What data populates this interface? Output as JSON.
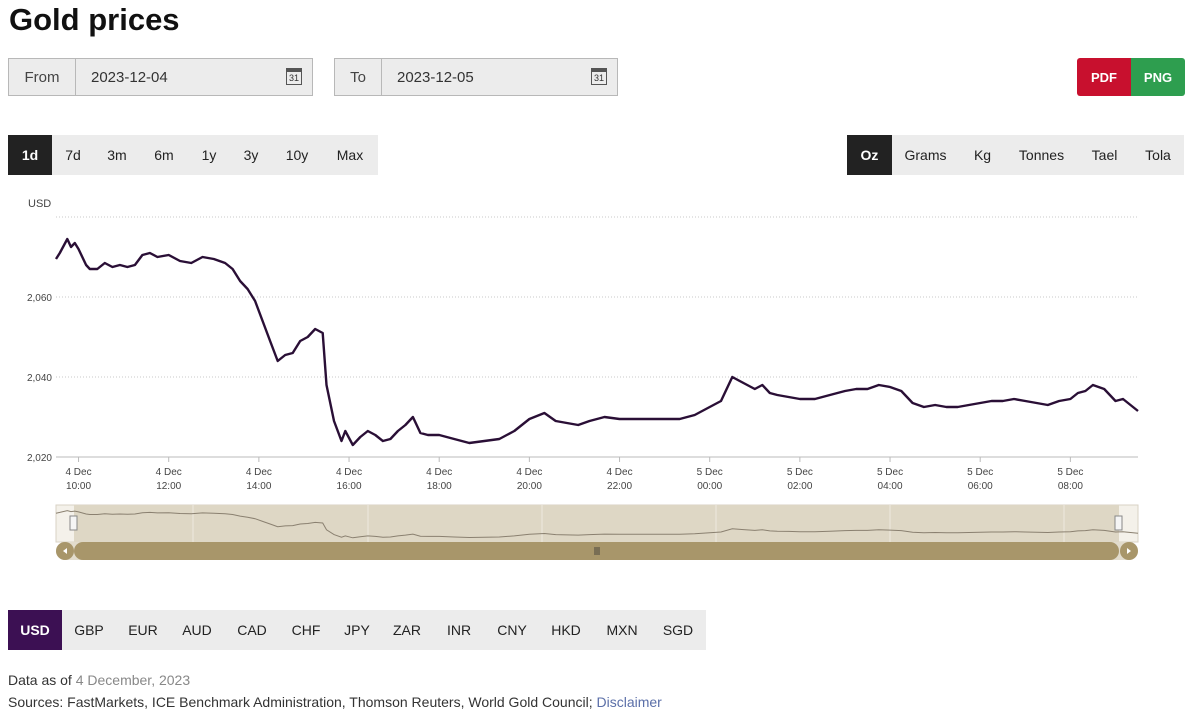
{
  "page": {
    "title": "Gold prices"
  },
  "date_range": {
    "from_label": "From",
    "from_value": "2023-12-04",
    "to_label": "To",
    "to_value": "2023-12-05",
    "calendar_glyph": "31"
  },
  "export": {
    "pdf_label": "PDF",
    "png_label": "PNG",
    "pdf_color": "#c8102e",
    "png_color": "#2e9e4f"
  },
  "ranges": [
    {
      "label": "1d",
      "active": true
    },
    {
      "label": "7d",
      "active": false
    },
    {
      "label": "3m",
      "active": false
    },
    {
      "label": "6m",
      "active": false
    },
    {
      "label": "1y",
      "active": false
    },
    {
      "label": "3y",
      "active": false
    },
    {
      "label": "10y",
      "active": false
    },
    {
      "label": "Max",
      "active": false
    }
  ],
  "units": [
    {
      "label": "Oz",
      "active": true
    },
    {
      "label": "Grams",
      "active": false
    },
    {
      "label": "Kg",
      "active": false
    },
    {
      "label": "Tonnes",
      "active": false
    },
    {
      "label": "Tael",
      "active": false
    },
    {
      "label": "Tola",
      "active": false
    }
  ],
  "currencies": [
    {
      "label": "USD",
      "active": true
    },
    {
      "label": "GBP",
      "active": false
    },
    {
      "label": "EUR",
      "active": false
    },
    {
      "label": "AUD",
      "active": false
    },
    {
      "label": "CAD",
      "active": false
    },
    {
      "label": "CHF",
      "active": false
    },
    {
      "label": "JPY",
      "active": false
    },
    {
      "label": "ZAR",
      "active": false
    },
    {
      "label": "INR",
      "active": false
    },
    {
      "label": "CNY",
      "active": false
    },
    {
      "label": "HKD",
      "active": false
    },
    {
      "label": "MXN",
      "active": false
    },
    {
      "label": "SGD",
      "active": false
    }
  ],
  "footer": {
    "data_as_of_label": "Data as of",
    "data_as_of_date": "4 December, 2023",
    "sources_text": "Sources: FastMarkets, ICE Benchmark Administration, Thomson Reuters, World Gold Council;",
    "disclaimer_label": "Disclaimer"
  },
  "colors": {
    "line": "#2a0f36",
    "active_currency": "#3c1053",
    "navigator_fill": "#ded7c5",
    "scrollbar": "#a8966a"
  },
  "chart_data": {
    "type": "line",
    "ylabel": "USD",
    "ylim": [
      2020,
      2080
    ],
    "yticks": [
      2020,
      2040,
      2060
    ],
    "ytick_labels": [
      "2,020",
      "2,040",
      "2,060"
    ],
    "xlim": [
      "2023-12-04T09:30",
      "2023-12-05T09:30"
    ],
    "xticks": [
      {
        "t": "2023-12-04T10:00",
        "line1": "4 Dec",
        "line2": "10:00"
      },
      {
        "t": "2023-12-04T12:00",
        "line1": "4 Dec",
        "line2": "12:00"
      },
      {
        "t": "2023-12-04T14:00",
        "line1": "4 Dec",
        "line2": "14:00"
      },
      {
        "t": "2023-12-04T16:00",
        "line1": "4 Dec",
        "line2": "16:00"
      },
      {
        "t": "2023-12-04T18:00",
        "line1": "4 Dec",
        "line2": "18:00"
      },
      {
        "t": "2023-12-04T20:00",
        "line1": "4 Dec",
        "line2": "20:00"
      },
      {
        "t": "2023-12-04T22:00",
        "line1": "4 Dec",
        "line2": "22:00"
      },
      {
        "t": "2023-12-05T00:00",
        "line1": "5 Dec",
        "line2": "00:00"
      },
      {
        "t": "2023-12-05T02:00",
        "line1": "5 Dec",
        "line2": "02:00"
      },
      {
        "t": "2023-12-05T04:00",
        "line1": "5 Dec",
        "line2": "04:00"
      },
      {
        "t": "2023-12-05T06:00",
        "line1": "5 Dec",
        "line2": "06:00"
      },
      {
        "t": "2023-12-05T08:00",
        "line1": "5 Dec",
        "line2": "08:00"
      }
    ],
    "grid": true,
    "legend": "none",
    "series": [
      {
        "points": [
          [
            "2023-12-04T09:30",
            2069.5
          ],
          [
            "2023-12-04T09:35",
            2071
          ],
          [
            "2023-12-04T09:45",
            2074.5
          ],
          [
            "2023-12-04T09:50",
            2072.5
          ],
          [
            "2023-12-04T09:55",
            2073.5
          ],
          [
            "2023-12-04T10:00",
            2072
          ],
          [
            "2023-12-04T10:10",
            2068
          ],
          [
            "2023-12-04T10:15",
            2067
          ],
          [
            "2023-12-04T10:25",
            2067
          ],
          [
            "2023-12-04T10:35",
            2068.5
          ],
          [
            "2023-12-04T10:45",
            2067.5
          ],
          [
            "2023-12-04T10:55",
            2068
          ],
          [
            "2023-12-04T11:05",
            2067.5
          ],
          [
            "2023-12-04T11:15",
            2068
          ],
          [
            "2023-12-04T11:25",
            2070.5
          ],
          [
            "2023-12-04T11:35",
            2071
          ],
          [
            "2023-12-04T11:45",
            2070
          ],
          [
            "2023-12-04T12:00",
            2070.5
          ],
          [
            "2023-12-04T12:15",
            2069
          ],
          [
            "2023-12-04T12:30",
            2068.5
          ],
          [
            "2023-12-04T12:45",
            2070
          ],
          [
            "2023-12-04T13:00",
            2069.5
          ],
          [
            "2023-12-04T13:15",
            2068.5
          ],
          [
            "2023-12-04T13:25",
            2067
          ],
          [
            "2023-12-04T13:35",
            2064
          ],
          [
            "2023-12-04T13:45",
            2062
          ],
          [
            "2023-12-04T13:55",
            2059
          ],
          [
            "2023-12-04T14:05",
            2054
          ],
          [
            "2023-12-04T14:15",
            2049
          ],
          [
            "2023-12-04T14:25",
            2044
          ],
          [
            "2023-12-04T14:35",
            2045.5
          ],
          [
            "2023-12-04T14:45",
            2046
          ],
          [
            "2023-12-04T14:55",
            2049
          ],
          [
            "2023-12-04T15:05",
            2050
          ],
          [
            "2023-12-04T15:15",
            2052
          ],
          [
            "2023-12-04T15:25",
            2051
          ],
          [
            "2023-12-04T15:30",
            2038
          ],
          [
            "2023-12-04T15:40",
            2029
          ],
          [
            "2023-12-04T15:50",
            2024
          ],
          [
            "2023-12-04T15:55",
            2026.5
          ],
          [
            "2023-12-04T16:05",
            2023
          ],
          [
            "2023-12-04T16:15",
            2025
          ],
          [
            "2023-12-04T16:25",
            2026.5
          ],
          [
            "2023-12-04T16:35",
            2025.5
          ],
          [
            "2023-12-04T16:45",
            2024
          ],
          [
            "2023-12-04T16:55",
            2024.5
          ],
          [
            "2023-12-04T17:05",
            2026.5
          ],
          [
            "2023-12-04T17:15",
            2028
          ],
          [
            "2023-12-04T17:25",
            2030
          ],
          [
            "2023-12-04T17:35",
            2026
          ],
          [
            "2023-12-04T17:45",
            2025.5
          ],
          [
            "2023-12-04T18:00",
            2025.5
          ],
          [
            "2023-12-04T18:20",
            2024.5
          ],
          [
            "2023-12-04T18:40",
            2023.5
          ],
          [
            "2023-12-04T19:00",
            2024
          ],
          [
            "2023-12-04T19:20",
            2024.5
          ],
          [
            "2023-12-04T19:40",
            2026.5
          ],
          [
            "2023-12-04T20:00",
            2029.5
          ],
          [
            "2023-12-04T20:20",
            2031
          ],
          [
            "2023-12-04T20:35",
            2029
          ],
          [
            "2023-12-04T20:50",
            2028.5
          ],
          [
            "2023-12-04T21:05",
            2028
          ],
          [
            "2023-12-04T21:20",
            2029
          ],
          [
            "2023-12-04T21:40",
            2030
          ],
          [
            "2023-12-04T22:00",
            2029.5
          ],
          [
            "2023-12-04T22:30",
            2029.5
          ],
          [
            "2023-12-04T23:00",
            2029.5
          ],
          [
            "2023-12-04T23:20",
            2029.5
          ],
          [
            "2023-12-04T23:40",
            2030.5
          ],
          [
            "2023-12-05T00:00",
            2032.5
          ],
          [
            "2023-12-05T00:15",
            2034
          ],
          [
            "2023-12-05T00:30",
            2040
          ],
          [
            "2023-12-05T00:45",
            2038.5
          ],
          [
            "2023-12-05T01:00",
            2037
          ],
          [
            "2023-12-05T01:10",
            2038
          ],
          [
            "2023-12-05T01:20",
            2036
          ],
          [
            "2023-12-05T01:30",
            2035.5
          ],
          [
            "2023-12-05T01:45",
            2035
          ],
          [
            "2023-12-05T02:00",
            2034.5
          ],
          [
            "2023-12-05T02:20",
            2034.5
          ],
          [
            "2023-12-05T02:40",
            2035.5
          ],
          [
            "2023-12-05T03:00",
            2036.5
          ],
          [
            "2023-12-05T03:15",
            2037
          ],
          [
            "2023-12-05T03:30",
            2037
          ],
          [
            "2023-12-05T03:45",
            2038
          ],
          [
            "2023-12-05T04:00",
            2037.5
          ],
          [
            "2023-12-05T04:15",
            2036.5
          ],
          [
            "2023-12-05T04:30",
            2033.5
          ],
          [
            "2023-12-05T04:45",
            2032.5
          ],
          [
            "2023-12-05T05:00",
            2033
          ],
          [
            "2023-12-05T05:15",
            2032.5
          ],
          [
            "2023-12-05T05:30",
            2032.5
          ],
          [
            "2023-12-05T05:45",
            2033
          ],
          [
            "2023-12-05T06:00",
            2033.5
          ],
          [
            "2023-12-05T06:15",
            2034
          ],
          [
            "2023-12-05T06:30",
            2034
          ],
          [
            "2023-12-05T06:45",
            2034.5
          ],
          [
            "2023-12-05T07:00",
            2034
          ],
          [
            "2023-12-05T07:15",
            2033.5
          ],
          [
            "2023-12-05T07:30",
            2033
          ],
          [
            "2023-12-05T07:45",
            2034
          ],
          [
            "2023-12-05T08:00",
            2034.5
          ],
          [
            "2023-12-05T08:10",
            2036
          ],
          [
            "2023-12-05T08:20",
            2036.5
          ],
          [
            "2023-12-05T08:30",
            2038
          ],
          [
            "2023-12-05T08:45",
            2037
          ],
          [
            "2023-12-05T09:00",
            2034
          ],
          [
            "2023-12-05T09:10",
            2034.5
          ],
          [
            "2023-12-05T09:30",
            2031.5
          ]
        ]
      }
    ]
  }
}
